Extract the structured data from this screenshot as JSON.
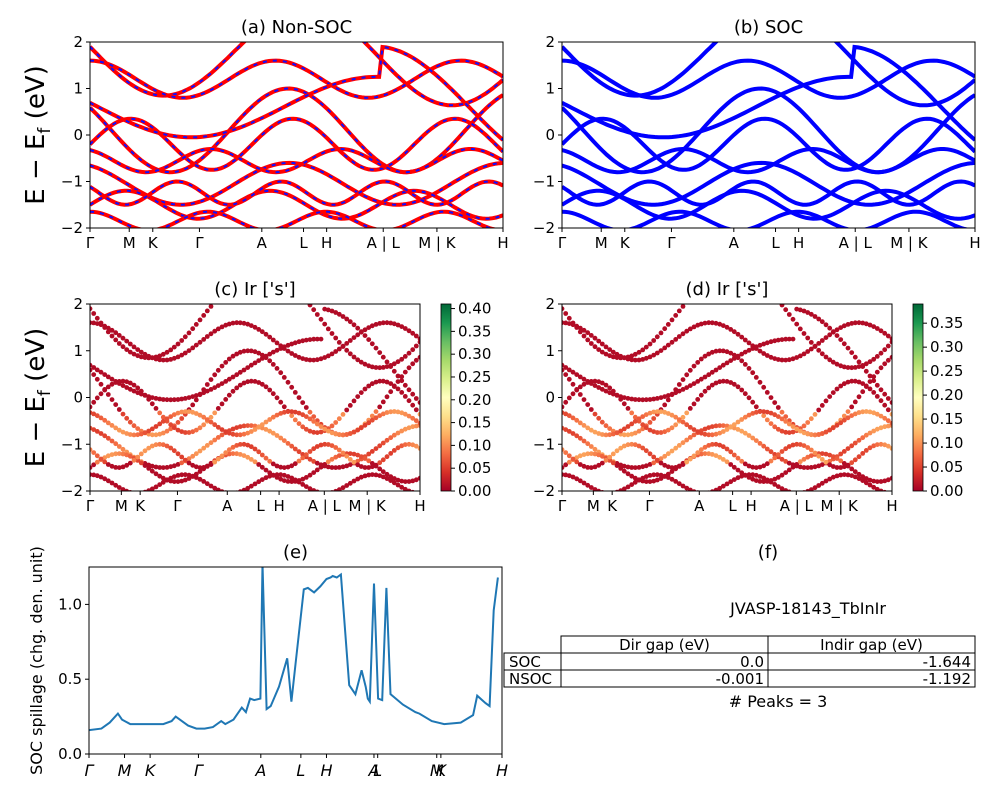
{
  "colors": {
    "nonsoc_line": "#ff0000",
    "nonsoc_dash": "#1010ff",
    "soc_line": "#0000ff",
    "spillage_line": "#1f77b4",
    "colormap": [
      "#a50026",
      "#d73027",
      "#f46d43",
      "#fdae61",
      "#fee08b",
      "#ffffbf",
      "#d9ef8b",
      "#a6d96a",
      "#66bd63",
      "#1a9850",
      "#006837"
    ]
  },
  "kpath_labels": [
    "Γ",
    "M",
    "K",
    "Γ",
    "A",
    "L",
    "H",
    "A | L",
    "M | K",
    "H"
  ],
  "kpath_labels_italic": [
    "Γ",
    "M",
    "K",
    "Γ",
    "A",
    "L",
    "H",
    "A",
    "L",
    "M",
    "K",
    "H"
  ],
  "chart_data": [
    {
      "id": "a",
      "type": "line",
      "title": "(a) Non-SOC",
      "ylabel": "E − E_f (eV)",
      "ylim": [
        -2,
        2
      ],
      "yticks": [
        "−2",
        "−1",
        "0",
        "1",
        "2"
      ],
      "xticks": [
        "Γ",
        "M",
        "K",
        "Γ",
        "A",
        "L",
        "H",
        "A | L",
        "M | K",
        "H"
      ],
      "style": "red line with blue dashes"
    },
    {
      "id": "b",
      "type": "line",
      "title": "(b) SOC",
      "ylim": [
        -2,
        2
      ],
      "yticks": [
        "−2",
        "−1",
        "0",
        "1",
        "2"
      ],
      "xticks": [
        "Γ",
        "M",
        "K",
        "Γ",
        "A",
        "L",
        "H",
        "A | L",
        "M | K",
        "H"
      ],
      "style": "blue thick lines"
    },
    {
      "id": "c",
      "type": "scatter",
      "title": "(c)  Ir ['s']",
      "ylabel": "E − E_f (eV)",
      "ylim": [
        -2,
        2
      ],
      "yticks": [
        "−2",
        "−1",
        "0",
        "1",
        "2"
      ],
      "xticks": [
        "Γ",
        "M",
        "K",
        "Γ",
        "A",
        "L",
        "H",
        "A | L",
        "M | K",
        "H"
      ],
      "colorbar": {
        "min": 0.0,
        "max": 0.41,
        "ticks": [
          "0.00",
          "0.05",
          "0.10",
          "0.15",
          "0.20",
          "0.25",
          "0.30",
          "0.35",
          "0.40"
        ]
      }
    },
    {
      "id": "d",
      "type": "scatter",
      "title": "(d) Ir ['s']",
      "ylim": [
        -2,
        2
      ],
      "yticks": [
        "−2",
        "−1",
        "0",
        "1",
        "2"
      ],
      "xticks": [
        "Γ",
        "M",
        "K",
        "Γ",
        "A",
        "L",
        "H",
        "A | L",
        "M | K",
        "H"
      ],
      "colorbar": {
        "min": 0.0,
        "max": 0.39,
        "ticks": [
          "0.00",
          "0.05",
          "0.10",
          "0.15",
          "0.20",
          "0.25",
          "0.30",
          "0.35"
        ]
      }
    },
    {
      "id": "e",
      "type": "line",
      "title": "(e)",
      "ylabel": "SOC spillage (chg. den. unit)",
      "ylim": [
        0,
        1.25
      ],
      "yticks": [
        "0.0",
        "0.5",
        "1.0"
      ],
      "xticks": [
        "Γ",
        "M",
        "K",
        "Γ",
        "A",
        "L",
        "H",
        "A",
        "L",
        "M",
        "K",
        "H"
      ],
      "x": [
        0,
        0.03,
        0.05,
        0.07,
        0.08,
        0.1,
        0.14,
        0.18,
        0.2,
        0.21,
        0.24,
        0.26,
        0.28,
        0.3,
        0.32,
        0.33,
        0.35,
        0.37,
        0.38,
        0.39,
        0.4,
        0.415,
        0.42,
        0.43,
        0.44,
        0.46,
        0.48,
        0.49,
        0.5,
        0.52,
        0.53,
        0.545,
        0.56,
        0.575,
        0.585,
        0.59,
        0.6,
        0.61,
        0.63,
        0.645,
        0.66,
        0.67,
        0.675,
        0.68,
        0.69,
        0.7,
        0.71,
        0.72,
        0.73,
        0.76,
        0.79,
        0.8,
        0.83,
        0.86,
        0.9,
        0.93,
        0.94,
        0.96,
        0.97,
        0.98,
        0.99
      ],
      "y": [
        0.16,
        0.17,
        0.21,
        0.27,
        0.23,
        0.2,
        0.2,
        0.2,
        0.22,
        0.25,
        0.19,
        0.17,
        0.17,
        0.18,
        0.22,
        0.2,
        0.23,
        0.31,
        0.28,
        0.37,
        0.36,
        0.37,
        1.27,
        0.3,
        0.32,
        0.45,
        0.64,
        0.35,
        0.6,
        1.1,
        1.11,
        1.08,
        1.12,
        1.17,
        1.18,
        1.19,
        1.18,
        1.2,
        0.46,
        0.4,
        0.56,
        0.45,
        0.37,
        0.35,
        1.14,
        0.37,
        0.36,
        1.11,
        0.4,
        0.33,
        0.28,
        0.27,
        0.22,
        0.2,
        0.21,
        0.26,
        0.39,
        0.34,
        0.32,
        0.96,
        1.18
      ]
    },
    {
      "id": "f",
      "type": "table",
      "title": "(f)",
      "subtitle": "JVASP-18143_TbInIr",
      "columns": [
        "Dir gap (eV)",
        "Indir gap (eV)"
      ],
      "rows": [
        {
          "label": "SOC",
          "values": [
            "0.0",
            "-1.644"
          ]
        },
        {
          "label": "NSOC",
          "values": [
            "-0.001",
            "-1.192"
          ]
        }
      ],
      "footer": "# Peaks = 3"
    }
  ]
}
